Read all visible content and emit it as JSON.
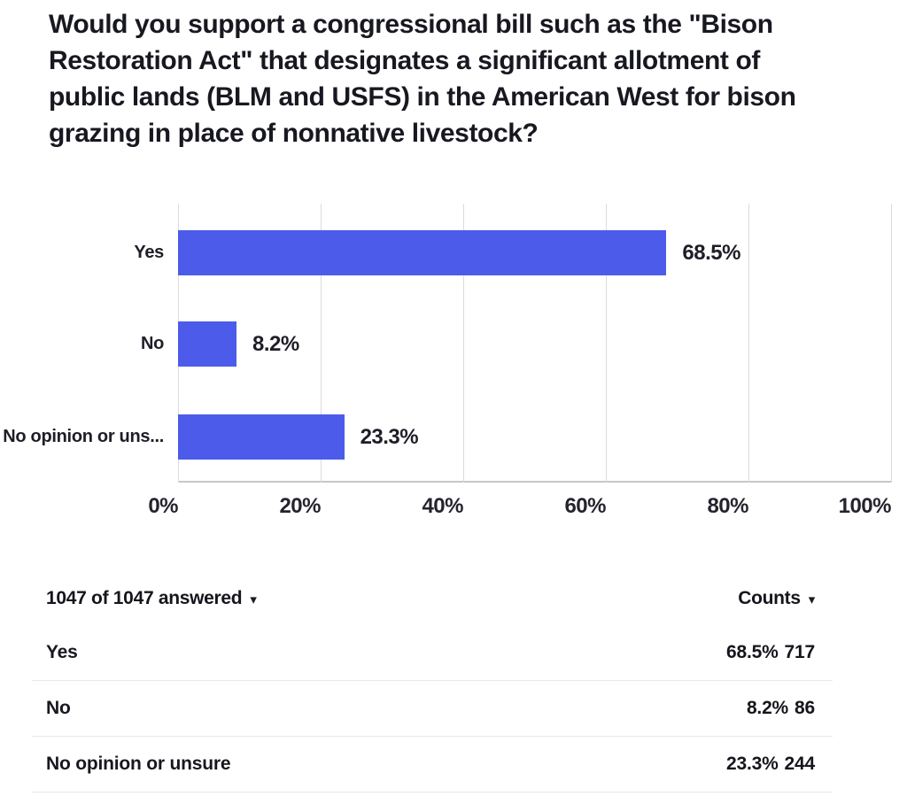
{
  "question": {
    "title": "Would you support a congressional bill such as the \"Bison Restoration Act\" that designates a significant allotment of public lands (BLM and USFS) in the American West for bison grazing in place of nonnative livestock?"
  },
  "chart_data": {
    "type": "bar",
    "orientation": "horizontal",
    "categories": [
      "Yes",
      "No",
      "No opinion or uns..."
    ],
    "values": [
      68.5,
      8.2,
      23.3
    ],
    "value_labels": [
      "68.5%",
      "8.2%",
      "23.3%"
    ],
    "x_ticks": [
      {
        "value": 0,
        "label": "0%"
      },
      {
        "value": 20,
        "label": "20%"
      },
      {
        "value": 40,
        "label": "40%"
      },
      {
        "value": 60,
        "label": "60%"
      },
      {
        "value": 80,
        "label": "80%"
      },
      {
        "value": 100,
        "label": "100%"
      }
    ],
    "xlim": [
      0,
      100
    ],
    "grid": true,
    "legend": false,
    "bar_color": "#4d5bea"
  },
  "results_table": {
    "answered_summary": "1047 of 1047 answered",
    "counts_header": "Counts",
    "rows": [
      {
        "label": "Yes",
        "percent": "68.5%",
        "count": "717"
      },
      {
        "label": "No",
        "percent": "8.2%",
        "count": "86"
      },
      {
        "label": "No opinion or unsure",
        "percent": "23.3%",
        "count": "244"
      }
    ]
  },
  "icons": {
    "dropdown_caret": "▾"
  },
  "colors": {
    "bar": "#4d5bea",
    "gridline": "#dbdbe0",
    "axis_line": "#c6c6cc",
    "divider": "#e9e9eb",
    "title_text": "#181821"
  }
}
